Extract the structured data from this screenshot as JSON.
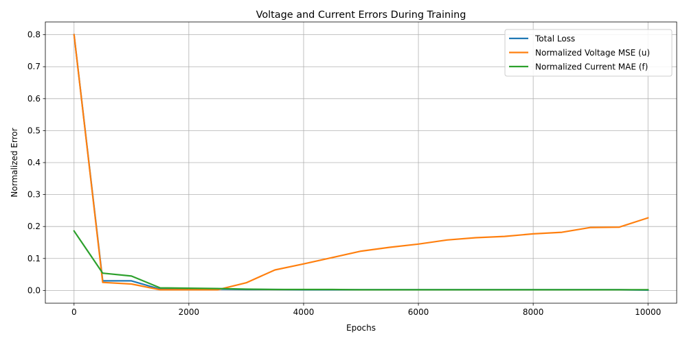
{
  "chart_data": {
    "type": "line",
    "title": "Voltage and Current Errors During Training",
    "xlabel": "Epochs",
    "ylabel": "Normalized Error",
    "xlim": [
      -500,
      10500
    ],
    "ylim": [
      -0.04,
      0.84
    ],
    "xticks": [
      0,
      2000,
      4000,
      6000,
      8000,
      10000
    ],
    "yticks": [
      0.0,
      0.1,
      0.2,
      0.3,
      0.4,
      0.5,
      0.6,
      0.7,
      0.8
    ],
    "grid": true,
    "legend_position": "top-right",
    "series": [
      {
        "name": "Total Loss",
        "color": "#1f77b4",
        "x": [
          0,
          500,
          1000,
          1500,
          2000,
          2500,
          3000,
          3500,
          4000,
          4500,
          5000,
          5500,
          6000,
          6500,
          7000,
          7500,
          8000,
          8500,
          9000,
          9500,
          10000
        ],
        "values": [
          0.8,
          0.03,
          0.03,
          0.004,
          0.004,
          0.004,
          0.003,
          0.003,
          0.002,
          0.002,
          0.002,
          0.002,
          0.002,
          0.002,
          0.002,
          0.002,
          0.002,
          0.002,
          0.002,
          0.002,
          0.001
        ]
      },
      {
        "name": "Normalized Voltage MSE (u)",
        "color": "#ff7f0e",
        "x": [
          0,
          500,
          1000,
          1500,
          2000,
          2500,
          3000,
          3500,
          4000,
          4500,
          5000,
          5500,
          6000,
          6500,
          7000,
          7500,
          8000,
          8500,
          9000,
          9500,
          10000
        ],
        "values": [
          0.8,
          0.025,
          0.02,
          0.002,
          0.002,
          0.002,
          0.024,
          0.064,
          0.083,
          0.103,
          0.123,
          0.135,
          0.145,
          0.158,
          0.165,
          0.169,
          0.177,
          0.182,
          0.197,
          0.198,
          0.227
        ]
      },
      {
        "name": "Normalized Current MAE (f)",
        "color": "#2ca02c",
        "x": [
          0,
          500,
          1000,
          1500,
          2000,
          2500,
          3000,
          3500,
          4000,
          4500,
          5000,
          5500,
          6000,
          6500,
          7000,
          7500,
          8000,
          8500,
          9000,
          9500,
          10000
        ],
        "values": [
          0.186,
          0.054,
          0.045,
          0.008,
          0.007,
          0.006,
          0.004,
          0.003,
          0.003,
          0.003,
          0.002,
          0.002,
          0.002,
          0.002,
          0.002,
          0.002,
          0.002,
          0.002,
          0.002,
          0.002,
          0.002
        ]
      }
    ]
  }
}
